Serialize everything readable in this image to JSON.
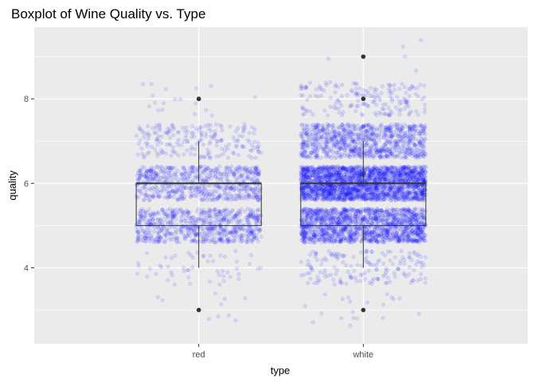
{
  "chart_data": {
    "type": "boxplot",
    "title": "Boxplot of Wine Quality vs. Type",
    "xlabel": "type",
    "ylabel": "quality",
    "categories": [
      "red",
      "white"
    ],
    "ylim": [
      2.2,
      9.7
    ],
    "yticks": [
      4,
      6,
      8
    ],
    "grid": true,
    "boxes": [
      {
        "category": "red",
        "q1": 5,
        "median": 6,
        "q3": 6,
        "whisker_low": 4,
        "whisker_high": 7,
        "outliers": [
          3,
          8
        ]
      },
      {
        "category": "white",
        "q1": 5,
        "median": 6,
        "q3": 6,
        "whisker_low": 4,
        "whisker_high": 7,
        "outliers": [
          3,
          8,
          9
        ]
      }
    ],
    "jitter_points": {
      "color": "#0000ff",
      "opacity": 0.1,
      "counts": {
        "red": {
          "3": 10,
          "4": 53,
          "5": 681,
          "6": 638,
          "7": 199,
          "8": 18
        },
        "white": {
          "3": 20,
          "4": 163,
          "5": 1457,
          "6": 2198,
          "7": 880,
          "8": 175,
          "9": 5
        }
      }
    }
  }
}
